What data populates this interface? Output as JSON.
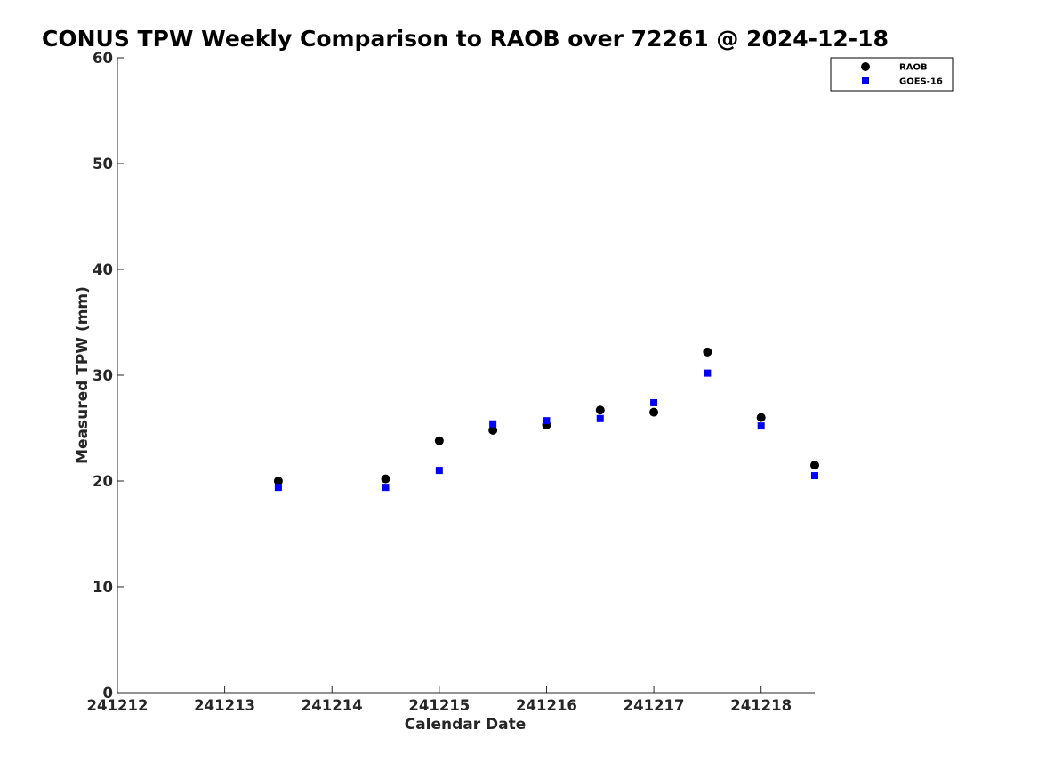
{
  "chart_data": {
    "type": "scatter",
    "title": "CONUS TPW Weekly Comparison to RAOB over 72261 @ 2024-12-18",
    "xlabel": "Calendar Date",
    "ylabel": "Measured TPW (mm)",
    "x_ticks": [
      "241212",
      "241213",
      "241214",
      "241215",
      "241216",
      "241217",
      "241218"
    ],
    "x_range_days": [
      "2024-12-12T00:00",
      "2024-12-18T12:00"
    ],
    "ylim": [
      0,
      60
    ],
    "y_ticks": [
      0,
      10,
      20,
      30,
      40,
      50,
      60
    ],
    "grid": false,
    "legend_position": "top-right",
    "colors": {
      "RAOB": "#000000",
      "GOES-16": "#0000ff"
    },
    "series": [
      {
        "name": "RAOB",
        "marker": "circle",
        "x": [
          "2024-12-13T12:00",
          "2024-12-14T12:00",
          "2024-12-15T00:00",
          "2024-12-15T12:00",
          "2024-12-16T00:00",
          "2024-12-16T12:00",
          "2024-12-17T00:00",
          "2024-12-17T12:00",
          "2024-12-18T00:00",
          "2024-12-18T12:00"
        ],
        "y": [
          20.0,
          20.2,
          23.8,
          24.8,
          25.3,
          26.7,
          26.5,
          32.2,
          26.0,
          21.5
        ]
      },
      {
        "name": "GOES-16",
        "marker": "square",
        "x": [
          "2024-12-13T12:00",
          "2024-12-14T12:00",
          "2024-12-15T00:00",
          "2024-12-15T12:00",
          "2024-12-16T00:00",
          "2024-12-16T12:00",
          "2024-12-17T00:00",
          "2024-12-17T12:00",
          "2024-12-18T00:00",
          "2024-12-18T12:00"
        ],
        "y": [
          19.4,
          19.4,
          21.0,
          25.4,
          25.7,
          25.9,
          27.4,
          30.2,
          25.2,
          20.5
        ]
      }
    ]
  }
}
